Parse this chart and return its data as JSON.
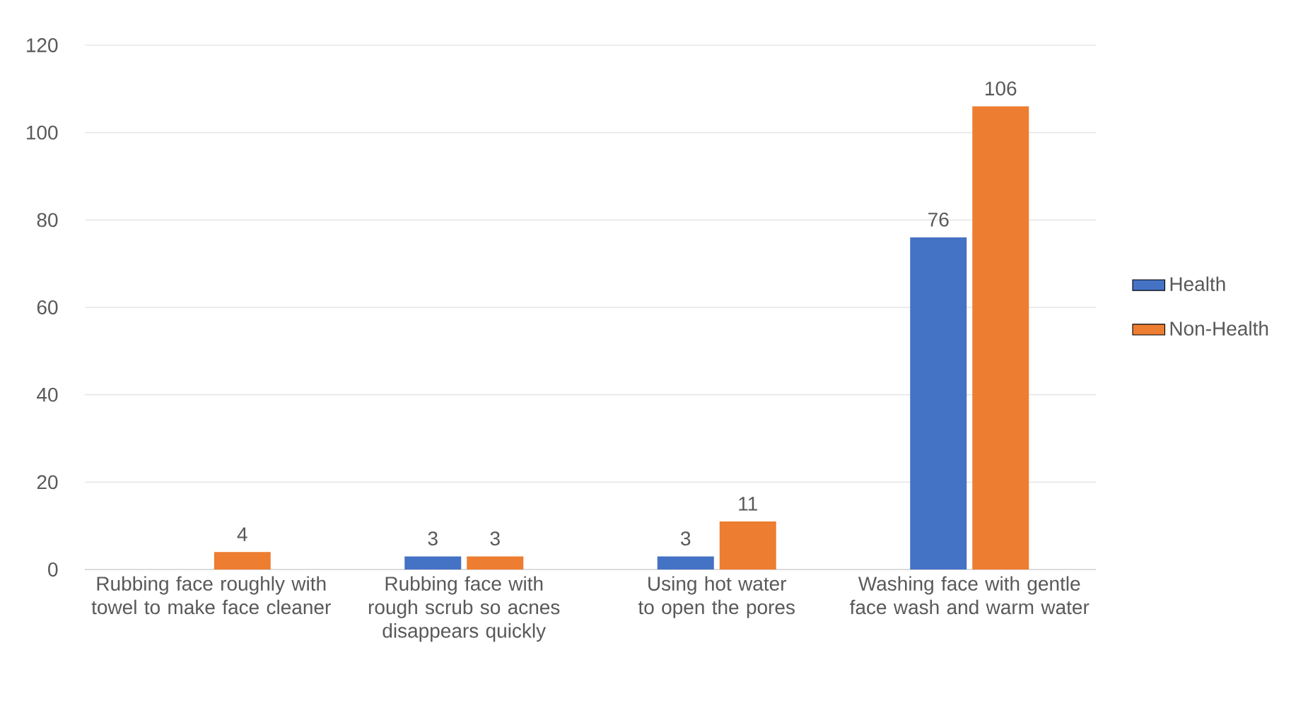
{
  "chart_data": {
    "type": "bar",
    "categories": [
      "Rubbing face roughly with towel to make face cleaner",
      "Rubbing face with rough scrub so acnes disappears quickly",
      "Using hot water to open the pores",
      "Washing face with gentle face wash and warm water"
    ],
    "series": [
      {
        "name": "Health",
        "color": "#4472c4",
        "values": [
          null,
          3,
          3,
          76
        ]
      },
      {
        "name": "Non-Health",
        "color": "#ed7d31",
        "values": [
          4,
          3,
          11,
          106
        ]
      }
    ],
    "ylim": [
      0,
      120
    ],
    "yticks": [
      0,
      20,
      40,
      60,
      80,
      100,
      120
    ],
    "grid": "y",
    "legend": "right",
    "data_labels": true
  }
}
